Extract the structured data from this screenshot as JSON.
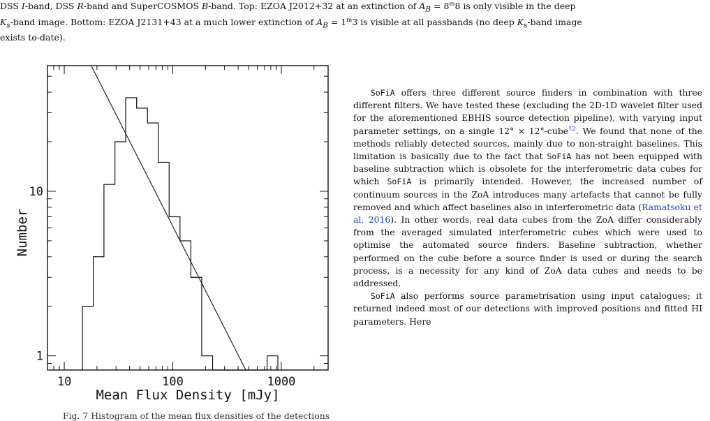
{
  "top_caption": {
    "l1_a": "DSS ",
    "l1_b": "I",
    "l1_c": "-band, DSS ",
    "l1_d": "R",
    "l1_e": "-band and SuperCOSMOS ",
    "l1_f": "B",
    "l1_g": "-band. Top: EZOA J2012+32 at an extinction of ",
    "l1_h": "A",
    "l1_i": "B",
    "l1_j": " = 8",
    "l1_k": "m",
    "l1_l": "8 is only visible in the deep",
    "l2_a": "K",
    "l2_b": "s",
    "l2_c": "-band image. Bottom: EZOA J2131+43 at a much lower extinction of ",
    "l2_d": "A",
    "l2_e": "B",
    "l2_f": " = 1",
    "l2_g": "m",
    "l2_h": "3 is visible at all passbands (no deep ",
    "l2_i": "K",
    "l2_j": "s",
    "l2_k": "-band image",
    "l3": "exists to-date)."
  },
  "chart_data": {
    "type": "histogram",
    "xlabel": "Mean Flux Density [mJy]",
    "ylabel": "Number",
    "xscale": "log",
    "yscale": "log",
    "xlim": [
      7,
      2700
    ],
    "ylim": [
      0.82,
      58
    ],
    "xticklabels": [
      "10",
      "100",
      "1000"
    ],
    "yticklabels": [
      "1",
      "10"
    ],
    "step_edges": [
      14.7,
      18.5,
      23.2,
      29.3,
      36.8,
      46.4,
      58.4,
      73.5,
      92.5,
      116.5,
      146.8,
      184.8,
      232.7,
      740,
      930
    ],
    "step_counts": [
      2,
      4,
      11,
      20,
      37,
      32,
      26,
      15,
      7,
      5,
      3,
      1,
      0,
      1
    ],
    "fit_line": {
      "x1": 17.7,
      "y1": 58,
      "x2": 471,
      "y2": 0.82
    }
  },
  "right_column": {
    "p1_s1": "SoFiA",
    "p1_t1": " offers three different source finders in combination with three different filters. We have tested these (excluding the 2D-1D wavelet filter used for the aforementioned EBHIS source detection pipeline), with varying input parameter settings, on a single 12° × 12°-cube",
    "p1_fn": "12",
    "p1_t2": ". We found that none of the methods reliably detected sources, mainly due to non-straight baselines. This limitation is basically due to the fact that ",
    "p1_s2": "SoFiA",
    "p1_t3": " has not been equipped with baseline subtraction which is obsolete for the interferometric data cubes for which ",
    "p1_s3": "SoFiA",
    "p1_t4": " is primarily intended. However, the increased number of continuum sources in the ZoA introduces many artefacts that cannot be fully removed and which affect baselines also in interferometric data (",
    "p1_ref": "Ramatsoku et al. 2016",
    "p1_t5": "). In other words, real data cubes from the ZoA differ considerably from the averaged simulated interferometric cubes which were used to optimise the automated source finders. Baseline subtraction, whether performed on the cube before a source finder is used or during the search process, is a necessity for any kind of ZoA data cubes and needs to be addressed.",
    "p2_s1": "SoFiA",
    "p2_t1": " also performs source parametrisation using input catalogues; it returned indeed most of our detections with improved positions and fitted H",
    "p2_hi": "I",
    "p2_t2": " parameters. Here"
  },
  "figure_caption": {
    "partial": "Fig. 7 Histogram of the mean flux densities of the detections"
  }
}
